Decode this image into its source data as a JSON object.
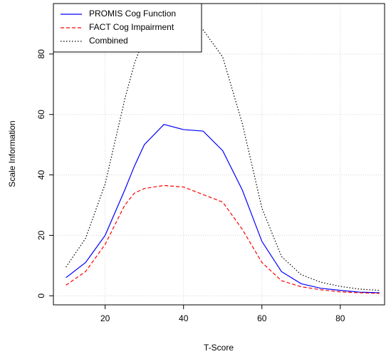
{
  "chart_data": {
    "type": "line",
    "xlabel": "T-Score",
    "ylabel": "Scale Information",
    "x": [
      10,
      15,
      20,
      25,
      27.5,
      30,
      35,
      40,
      45,
      50,
      55,
      60,
      65,
      70,
      75,
      80,
      85,
      90
    ],
    "series": [
      {
        "name": "PROMIS Cog Function",
        "color": "#0000ff",
        "dash": "solid",
        "values": [
          6,
          11,
          20,
          35,
          43,
          50,
          56.7,
          55,
          54.5,
          48,
          35,
          18,
          8,
          4,
          2.5,
          1.8,
          1.2,
          1
        ]
      },
      {
        "name": "FACT Cog Impairment",
        "color": "#ff0000",
        "dash": "dashed",
        "values": [
          3.5,
          8,
          17,
          30,
          34,
          35.5,
          36.5,
          36,
          33.5,
          31,
          22,
          11,
          5,
          3,
          2,
          1.3,
          1,
          0.8
        ]
      },
      {
        "name": "Combined",
        "color": "#000000",
        "dash": "dotted",
        "values": [
          9.5,
          19,
          37,
          65,
          77,
          85.5,
          93,
          91,
          88,
          79,
          57,
          29,
          13,
          7,
          4.5,
          3.1,
          2.2,
          1.8
        ]
      }
    ],
    "xlim": [
      6.8,
      91.3
    ],
    "xticks": [
      20,
      40,
      60,
      80
    ],
    "ylim": [
      -3,
      96.7
    ],
    "yticks": [
      0,
      20,
      40,
      60,
      80
    ],
    "grid": true,
    "legend": "top-left"
  }
}
